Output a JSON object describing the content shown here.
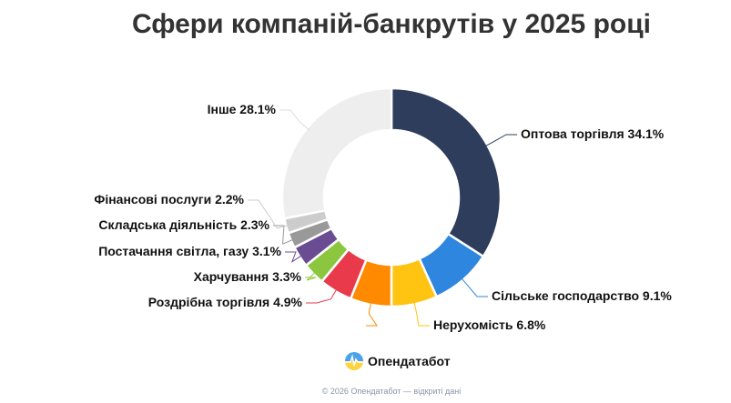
{
  "chart_data": {
    "type": "pie",
    "donut": true,
    "title": "Сфери компаній-банкрутів у 2025 році",
    "start": "top",
    "direction": "clockwise",
    "slices": [
      {
        "label": "Оптова торгівля",
        "value": 34.1,
        "text": "Оптова торгівля 34.1%",
        "color": "#2e3d5c"
      },
      {
        "label": "Сільське господарство",
        "value": 9.1,
        "text": "Сільське господарство 9.1%",
        "color": "#2e86de"
      },
      {
        "label": "Нерухомість",
        "value": 6.8,
        "text": "Нерухомість 6.8%",
        "color": "#ffc312"
      },
      {
        "label": "",
        "value": 6.1,
        "text": "",
        "color": "#ff8a00"
      },
      {
        "label": "Роздрібна торгівля",
        "value": 4.9,
        "text": "Роздрібна торгівля 4.9%",
        "color": "#e83a4a"
      },
      {
        "label": "Харчування",
        "value": 3.3,
        "text": "Харчування 3.3%",
        "color": "#8cc63f"
      },
      {
        "label": "Постачання світла, газу",
        "value": 3.1,
        "text": "Постачання світла, газу 3.1%",
        "color": "#6a4c93"
      },
      {
        "label": "Складська діяльність",
        "value": 2.3,
        "text": "Складська діяльність 2.3%",
        "color": "#999999"
      },
      {
        "label": "Фінансові послуги",
        "value": 2.2,
        "text": "Фінансові послуги 2.2%",
        "color": "#cccccc"
      },
      {
        "label": "Інше",
        "value": 28.1,
        "text": "Інше 28.1%",
        "color": "#eeeeee"
      }
    ]
  },
  "brand": {
    "name": "Опендатабот"
  },
  "footer": {
    "copyright": "© 2026 Опендатабот — відкриті дані"
  }
}
